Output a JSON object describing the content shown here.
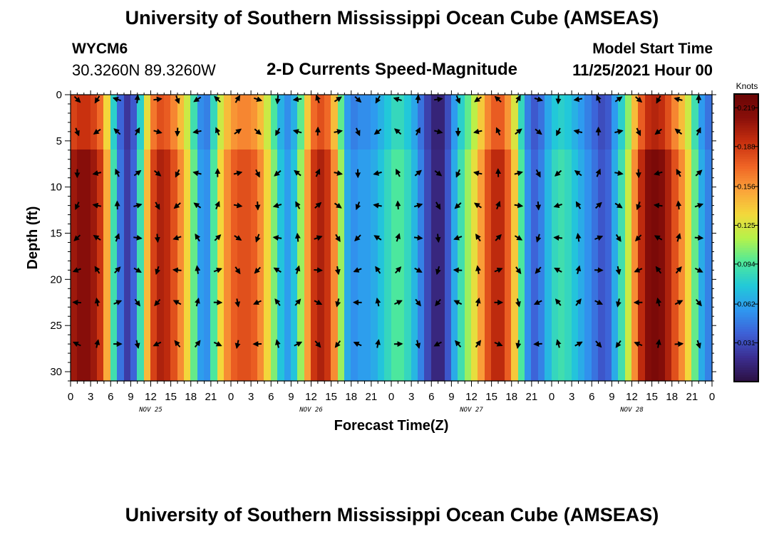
{
  "header": {
    "title": "University of Southern Mississippi Ocean Cube (AMSEAS)",
    "footer_title": "University of Southern Mississippi Ocean Cube (AMSEAS)",
    "station_id": "WYCM6",
    "coordinates": "30.3260N  89.3260W",
    "start_label": "Model Start Time",
    "start_value": "11/25/2021 Hour 00"
  },
  "colors": {
    "scale": [
      "#2b1040",
      "#3b2d8f",
      "#3e5fd6",
      "#2f98f0",
      "#22c8d9",
      "#4ee89b",
      "#b6f24a",
      "#f3d83b",
      "#fba23a",
      "#ef6425",
      "#c8300f",
      "#8a0f0a",
      "#6a0505"
    ]
  },
  "chart_data": {
    "type": "heatmap",
    "title": "2-D Currents Speed-Magnitude",
    "xlabel": "Forecast Time(Z)",
    "ylabel": "Depth (ft)",
    "x_tick_labels": [
      "0",
      "3",
      "6",
      "9",
      "12",
      "15",
      "18",
      "21",
      "0",
      "3",
      "6",
      "9",
      "12",
      "15",
      "18",
      "21",
      "0",
      "3",
      "6",
      "9",
      "12",
      "15",
      "18",
      "21",
      "0",
      "3",
      "6",
      "9",
      "12",
      "15",
      "18",
      "21",
      "0"
    ],
    "day_labels": [
      "NOV 25",
      "NOV 26",
      "NOV 27",
      "NOV 28"
    ],
    "y_ticks": [
      0,
      5,
      10,
      15,
      20,
      25,
      30
    ],
    "y_tick_labels": [
      "0",
      "5",
      "10",
      "15",
      "20",
      "25",
      "30"
    ],
    "xlim_hours": [
      0,
      96
    ],
    "ylim_ft": [
      0,
      31
    ],
    "colorbar": {
      "unit": "Knots",
      "min": 0.0,
      "max": 0.23,
      "ticks": [
        "0.219",
        "0.188",
        "0.156",
        "0.125",
        "0.094",
        "0.062",
        "0.031"
      ]
    },
    "speed_profile_knots": {
      "hours": [
        0,
        1,
        2,
        3,
        4,
        5,
        6,
        7,
        8,
        9,
        10,
        11,
        12,
        13,
        14,
        15,
        16,
        17,
        18,
        19,
        20,
        21,
        22,
        23,
        24,
        25,
        26,
        27,
        28,
        29,
        30,
        31,
        32,
        33,
        34,
        35,
        36,
        37,
        38,
        39,
        40,
        41,
        42,
        43,
        44,
        45,
        46,
        47,
        48,
        49,
        50,
        51,
        52,
        53,
        54,
        55,
        56,
        57,
        58,
        59,
        60,
        61,
        62,
        63,
        64,
        65,
        66,
        67,
        68,
        69,
        70,
        71,
        72,
        73,
        74,
        75,
        76,
        77,
        78,
        79,
        80,
        81,
        82,
        83,
        84,
        85,
        86,
        87,
        88,
        89,
        90,
        91,
        92,
        93,
        94,
        95,
        96
      ],
      "values": [
        0.2,
        0.21,
        0.215,
        0.21,
        0.2,
        0.18,
        0.12,
        0.06,
        0.03,
        0.02,
        0.06,
        0.12,
        0.17,
        0.2,
        0.2,
        0.19,
        0.17,
        0.15,
        0.12,
        0.08,
        0.04,
        0.07,
        0.12,
        0.15,
        0.17,
        0.18,
        0.18,
        0.18,
        0.17,
        0.15,
        0.12,
        0.09,
        0.06,
        0.06,
        0.09,
        0.13,
        0.18,
        0.2,
        0.2,
        0.18,
        0.14,
        0.08,
        0.05,
        0.06,
        0.06,
        0.06,
        0.07,
        0.08,
        0.09,
        0.1,
        0.09,
        0.08,
        0.06,
        0.04,
        0.02,
        0.01,
        0.02,
        0.05,
        0.08,
        0.1,
        0.12,
        0.14,
        0.17,
        0.19,
        0.2,
        0.19,
        0.16,
        0.12,
        0.07,
        0.04,
        0.04,
        0.06,
        0.08,
        0.09,
        0.09,
        0.08,
        0.07,
        0.06,
        0.05,
        0.04,
        0.03,
        0.05,
        0.08,
        0.1,
        0.14,
        0.18,
        0.21,
        0.22,
        0.22,
        0.21,
        0.19,
        0.17,
        0.15,
        0.12,
        0.08,
        0.05,
        0.05
      ]
    },
    "arrow_hours": [
      1,
      4,
      7,
      10,
      13,
      16,
      19,
      22,
      25,
      28,
      31,
      34,
      37,
      40,
      43,
      46,
      49,
      52,
      55,
      58,
      61,
      64,
      67,
      70,
      73,
      76,
      79,
      82,
      85,
      88,
      91,
      94
    ],
    "arrow_depths_ft": [
      0.5,
      4,
      8.5,
      12,
      15.5,
      19,
      22.5,
      27
    ]
  }
}
